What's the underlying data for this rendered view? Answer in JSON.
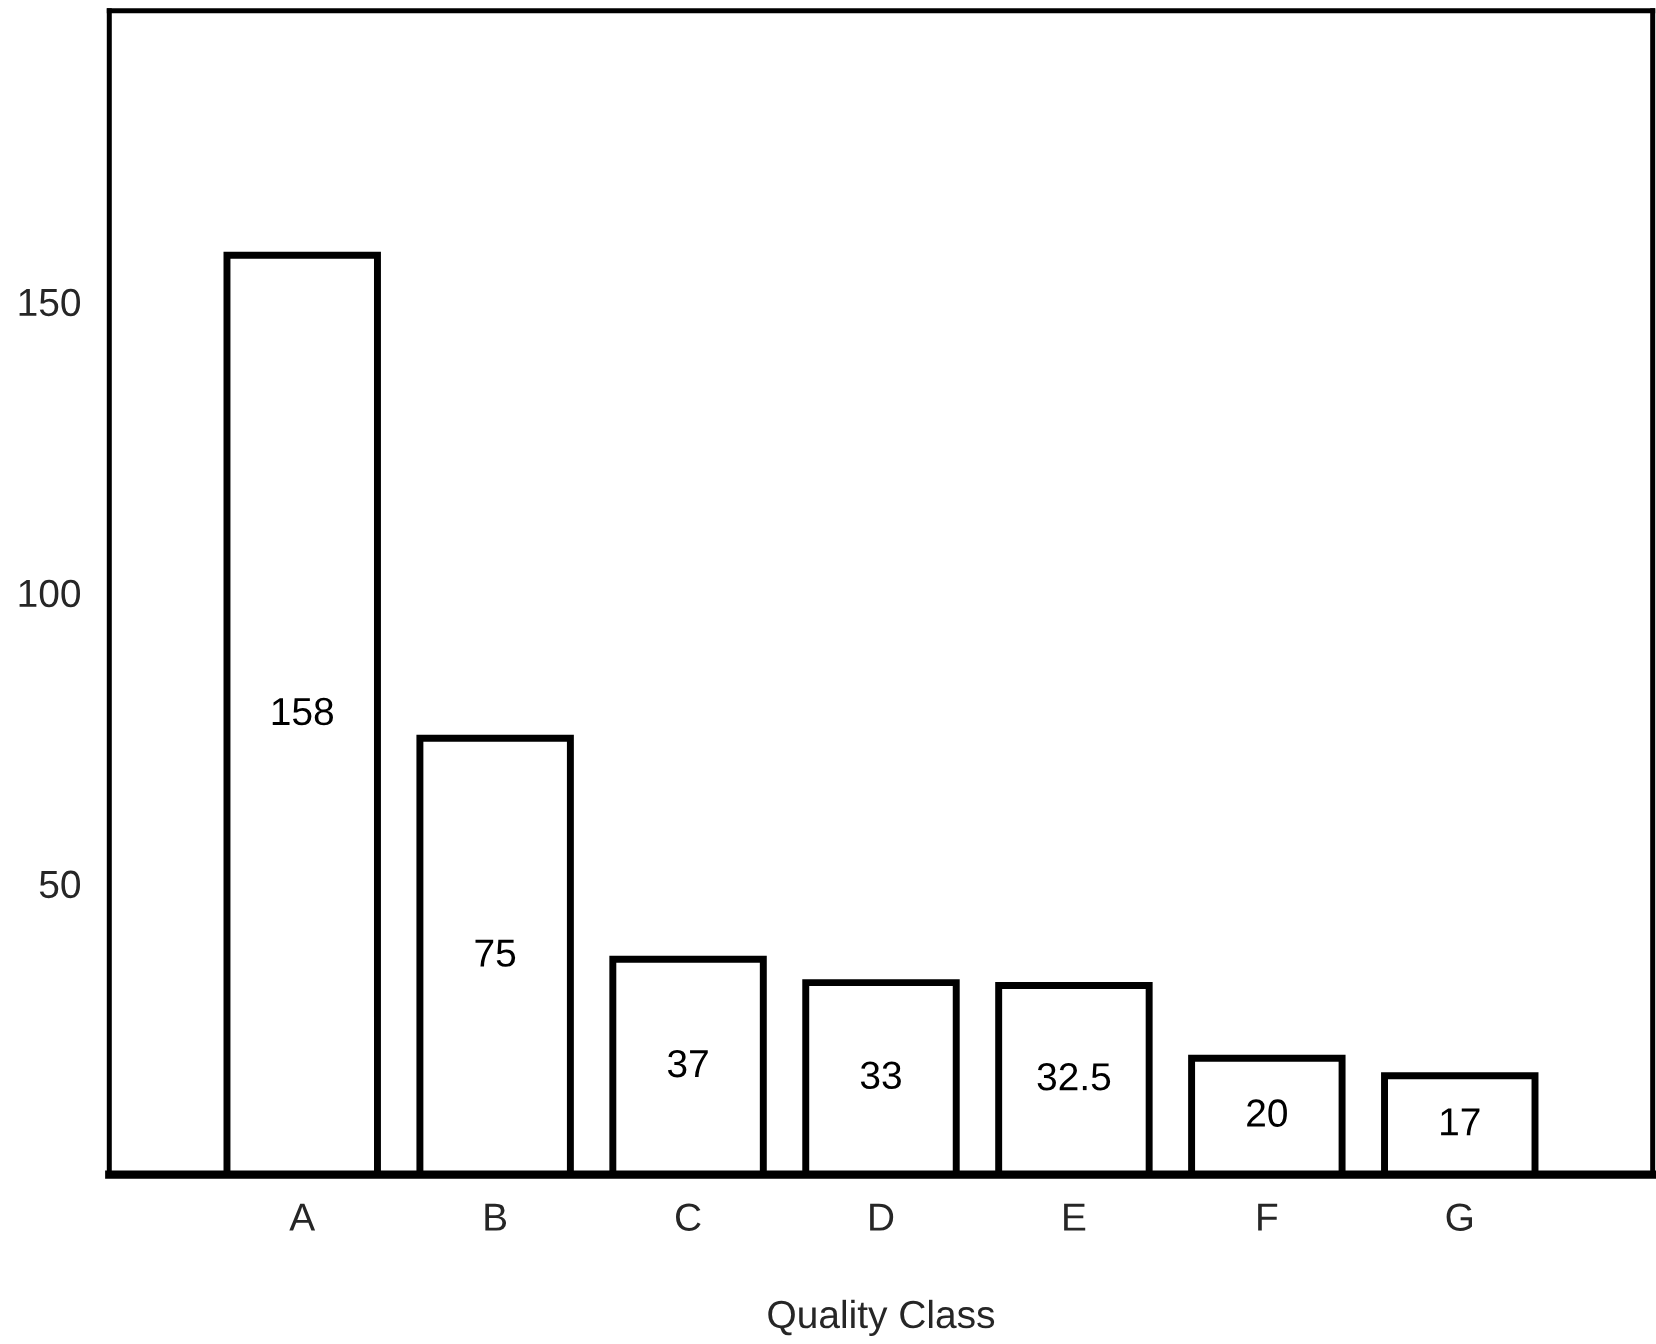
{
  "chart_data": {
    "type": "bar",
    "xlabel": "Quality Class",
    "categories": [
      "A",
      "B",
      "C",
      "D",
      "E",
      "F",
      "G"
    ],
    "values": [
      158,
      75,
      37,
      33,
      32.5,
      20,
      17
    ],
    "color": "#ffffff",
    "ylim": [
      0,
      200
    ],
    "yticks": [
      50,
      100,
      150
    ],
    "data_labels": true
  }
}
